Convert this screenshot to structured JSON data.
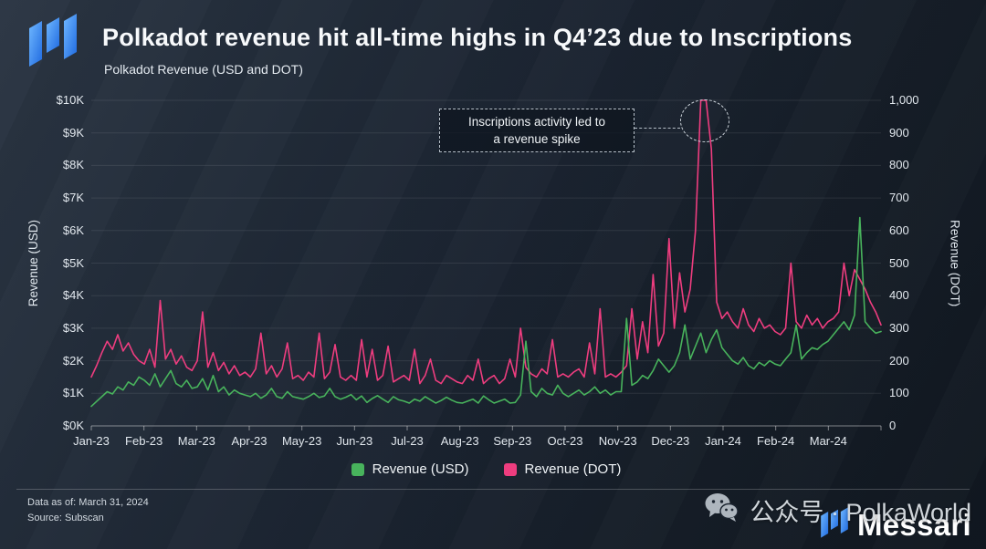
{
  "header": {
    "title": "Polkadot revenue hit all-time highs in Q4’23 due to Inscriptions",
    "subtitle": "Polkadot Revenue (USD and DOT)"
  },
  "chart_data": {
    "type": "line",
    "title": "Polkadot Revenue (USD and DOT)",
    "grid": "horizontal",
    "legend_position": "bottom-center",
    "x_axis": {
      "categories": [
        "Jan-23",
        "Feb-23",
        "Mar-23",
        "Apr-23",
        "May-23",
        "Jun-23",
        "Jul-23",
        "Aug-23",
        "Sep-23",
        "Oct-23",
        "Nov-23",
        "Dec-23",
        "Jan-24",
        "Feb-24",
        "Mar-24"
      ]
    },
    "y_left": {
      "label": "Revenue (USD)",
      "min": 0,
      "max": 10000,
      "ticks": [
        "$0K",
        "$1K",
        "$2K",
        "$3K",
        "$4K",
        "$5K",
        "$6K",
        "$7K",
        "$8K",
        "$9K",
        "$10K"
      ]
    },
    "y_right": {
      "label": "Revenue (DOT)",
      "min": 0,
      "max": 1000,
      "ticks": [
        "0",
        "100",
        "200",
        "300",
        "400",
        "500",
        "600",
        "700",
        "800",
        "900",
        "1,000"
      ]
    },
    "annotation": {
      "line1": "Inscriptions activity led to",
      "line2": "a revenue spike",
      "target": "Dec-23 revenue spike"
    },
    "series": [
      {
        "name": "Revenue (USD)",
        "axis": "left",
        "unit": "USD",
        "color": "#48b35c",
        "values": [
          600,
          750,
          900,
          1050,
          980,
          1200,
          1100,
          1350,
          1250,
          1500,
          1400,
          1250,
          1600,
          1200,
          1450,
          1700,
          1300,
          1200,
          1400,
          1150,
          1200,
          1450,
          1100,
          1550,
          1050,
          1200,
          950,
          1100,
          1000,
          950,
          900,
          1000,
          850,
          950,
          1150,
          900,
          850,
          1050,
          900,
          860,
          820,
          900,
          1000,
          870,
          920,
          1150,
          900,
          820,
          880,
          960,
          800,
          920,
          720,
          840,
          930,
          820,
          720,
          900,
          800,
          760,
          700,
          820,
          760,
          900,
          800,
          700,
          780,
          880,
          790,
          720,
          700,
          760,
          820,
          700,
          920,
          800,
          700,
          760,
          820,
          700,
          720,
          950,
          2600,
          1050,
          900,
          1150,
          1000,
          950,
          1250,
          1000,
          900,
          1000,
          1100,
          950,
          1050,
          1200,
          1000,
          1100,
          950,
          1050,
          1050,
          3300,
          1250,
          1350,
          1550,
          1450,
          1700,
          2050,
          1850,
          1650,
          1850,
          2250,
          3100,
          2050,
          2450,
          2850,
          2250,
          2650,
          2950,
          2400,
          2200,
          2000,
          1900,
          2100,
          1850,
          1750,
          1950,
          1850,
          2000,
          1900,
          1850,
          2050,
          2250,
          3100,
          2050,
          2250,
          2400,
          2350,
          2500,
          2600,
          2800,
          3000,
          3200,
          2950,
          3400,
          6400,
          3200,
          3000,
          2850,
          2900
        ]
      },
      {
        "name": "Revenue (DOT)",
        "axis": "right",
        "unit": "DOT",
        "color": "#ee3d7f",
        "values": [
          150,
          185,
          225,
          260,
          235,
          280,
          230,
          255,
          220,
          200,
          190,
          235,
          180,
          385,
          205,
          235,
          190,
          215,
          180,
          170,
          200,
          350,
          180,
          225,
          170,
          195,
          160,
          185,
          155,
          165,
          150,
          175,
          285,
          160,
          185,
          150,
          175,
          255,
          145,
          155,
          140,
          165,
          150,
          285,
          145,
          165,
          250,
          150,
          140,
          155,
          140,
          265,
          150,
          235,
          140,
          155,
          245,
          135,
          145,
          155,
          140,
          235,
          130,
          155,
          205,
          140,
          130,
          155,
          145,
          135,
          130,
          155,
          140,
          205,
          130,
          145,
          155,
          130,
          145,
          205,
          150,
          300,
          180,
          160,
          150,
          175,
          160,
          265,
          150,
          160,
          150,
          165,
          175,
          150,
          255,
          160,
          360,
          150,
          160,
          150,
          165,
          185,
          360,
          205,
          320,
          225,
          465,
          245,
          285,
          575,
          300,
          470,
          350,
          420,
          600,
          1000,
          1000,
          850,
          380,
          330,
          350,
          320,
          300,
          360,
          310,
          290,
          330,
          300,
          310,
          290,
          280,
          300,
          500,
          320,
          300,
          340,
          310,
          330,
          300,
          320,
          330,
          350,
          500,
          400,
          480,
          450,
          420,
          380,
          350,
          310
        ]
      }
    ]
  },
  "footer": {
    "data_as_of": "Data as of: March 31, 2024",
    "source": "Source: Subscan",
    "brand": "Messari"
  },
  "watermark": {
    "icon": "wechat-icon",
    "text": "公众号 · PolkaWorld"
  }
}
